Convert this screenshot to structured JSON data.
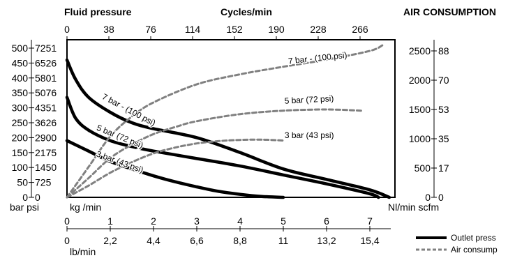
{
  "chart_data": {
    "type": "line",
    "headers": {
      "fluid_pressure": "Fluid pressure",
      "cycles": "Cycles/min",
      "air_consumption": "AIR CONSUMPTION"
    },
    "axes": {
      "top_ticks": [
        "0",
        "38",
        "76",
        "114",
        "152",
        "190",
        "228",
        "266"
      ],
      "left_bar_ticks": [
        "500",
        "450",
        "400",
        "350",
        "300",
        "250",
        "200",
        "150",
        "100",
        "50",
        "0"
      ],
      "left_psi_ticks": [
        "7251",
        "6526",
        "5801",
        "5076",
        "4351",
        "3626",
        "2900",
        "2175",
        "1450",
        "725",
        "0"
      ],
      "left_unit_label": "bar psi",
      "right_nl_ticks": [
        "2500",
        "2000",
        "1500",
        "1000",
        "500",
        "0"
      ],
      "right_scfm_ticks": [
        "88",
        "70",
        "53",
        "35",
        "17",
        "0"
      ],
      "right_unit_label": "Nl/min scfm",
      "bottom_kg_label": "kg /min",
      "bottom_kg_ticks": [
        "0",
        "1",
        "2",
        "3",
        "4",
        "5",
        "6",
        "7"
      ],
      "bottom_lb_ticks": [
        "0",
        "2,2",
        "4,4",
        "6,6",
        "8,8",
        "11",
        "13,2",
        "15,4"
      ],
      "bottom_lb_label": "lb/min",
      "xlim_kg": [
        0,
        7.6
      ],
      "ylim_bar": [
        0,
        500
      ],
      "ylim_nl": [
        0,
        2500
      ]
    },
    "series": [
      {
        "name": "7 bar - (100 psi)",
        "kind": "outlet",
        "x": [
          0,
          0.2,
          0.5,
          1,
          1.5,
          2,
          3,
          4,
          5,
          6,
          7,
          7.45
        ],
        "y": [
          460,
          395,
          335,
          285,
          250,
          230,
          200,
          150,
          95,
          60,
          25,
          0
        ]
      },
      {
        "name": "5 bar (72 psi)",
        "kind": "outlet",
        "x": [
          0,
          0.2,
          0.5,
          1,
          1.5,
          2,
          3,
          4,
          5,
          6,
          7,
          7.2
        ],
        "y": [
          335,
          265,
          225,
          190,
          170,
          155,
          130,
          105,
          75,
          45,
          12,
          0
        ]
      },
      {
        "name": "3 bar (43 psi)",
        "kind": "outlet",
        "x": [
          0,
          0.5,
          1,
          1.5,
          2,
          2.5,
          3,
          3.5,
          4,
          4.5,
          5
        ],
        "y": [
          190,
          155,
          120,
          95,
          72,
          52,
          35,
          20,
          10,
          3,
          0
        ]
      },
      {
        "name": "7 bar - (100 psi)",
        "kind": "air",
        "x": [
          0,
          0.5,
          1,
          1.5,
          2,
          3,
          4,
          5,
          6,
          7,
          7.3
        ],
        "y": [
          0,
          520,
          1040,
          1380,
          1620,
          1930,
          2100,
          2230,
          2350,
          2500,
          2600
        ]
      },
      {
        "name": "5 bar (72 psi)",
        "kind": "air",
        "x": [
          0,
          0.5,
          1,
          1.5,
          2,
          2.5,
          3,
          4,
          5,
          6,
          6.8
        ],
        "y": [
          0,
          330,
          670,
          900,
          1080,
          1200,
          1300,
          1420,
          1480,
          1500,
          1480
        ]
      },
      {
        "name": "3 bar (43 psi)",
        "kind": "air",
        "x": [
          0,
          0.5,
          1,
          1.5,
          2,
          2.5,
          3,
          3.5,
          4,
          4.5,
          5
        ],
        "y": [
          0,
          200,
          420,
          600,
          750,
          850,
          920,
          960,
          980,
          985,
          970
        ]
      }
    ],
    "curve_labels": [
      {
        "text": "7 bar - (100 psi)",
        "kind": "outlet",
        "x": 1.4,
        "y": 285,
        "rotate": 28
      },
      {
        "text": "5 bar (72 psi)",
        "kind": "outlet",
        "x": 1.2,
        "y": 195,
        "rotate": 22
      },
      {
        "text": "3 bar (43 psi)",
        "kind": "outlet",
        "x": 1.2,
        "y": 110,
        "rotate": 20
      },
      {
        "text": "7 bar - (100 psi)",
        "kind": "air",
        "x": 5.8,
        "y": 2330,
        "rotate": -6
      },
      {
        "text": "5 bar (72 psi)",
        "kind": "air",
        "x": 5.6,
        "y": 1620,
        "rotate": -3
      },
      {
        "text": "3 bar (43 psi)",
        "kind": "air",
        "x": 5.6,
        "y": 1010,
        "rotate": 0
      }
    ],
    "legend": {
      "placement": "bottom-right",
      "items": [
        {
          "label": "Outlet press",
          "style": "solid"
        },
        {
          "label": "Air consump",
          "style": "dashed"
        }
      ]
    },
    "colors": {
      "outlet": "#000000",
      "air": "#808080",
      "axis": "#000000"
    }
  }
}
